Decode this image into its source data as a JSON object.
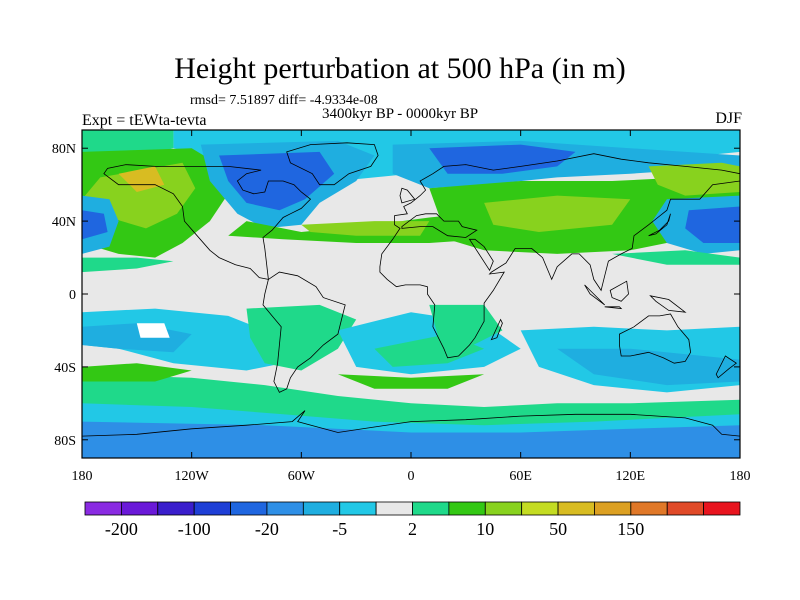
{
  "header": {
    "title": "Height perturbation at 500 hPa (in m)",
    "stats": "rmsd= 7.51897 diff= -4.9334e-08",
    "period": "3400kyr BP - 0000kyr BP",
    "experiment": "Expt = tEWta-tevta",
    "season": "DJF"
  },
  "axes": {
    "lat_ticks": [
      {
        "value": 80,
        "label": "80N"
      },
      {
        "value": 40,
        "label": "40N"
      },
      {
        "value": 0,
        "label": "0"
      },
      {
        "value": -40,
        "label": "40S"
      },
      {
        "value": -80,
        "label": "80S"
      }
    ],
    "lon_ticks": [
      {
        "value": -180,
        "label": "180"
      },
      {
        "value": -120,
        "label": "120W"
      },
      {
        "value": -60,
        "label": "60W"
      },
      {
        "value": 0,
        "label": "0"
      },
      {
        "value": 60,
        "label": "60E"
      },
      {
        "value": 120,
        "label": "120E"
      },
      {
        "value": 180,
        "label": "180"
      }
    ],
    "lon_range": [
      -180,
      180
    ],
    "lat_range": [
      -90,
      90
    ]
  },
  "colorbar": {
    "colors": [
      "#8a2be2",
      "#6a19d8",
      "#3a1ecc",
      "#1e3fd6",
      "#1f66e0",
      "#2e8fe6",
      "#1faee0",
      "#22c8e6",
      "#e8e8e8",
      "#1fd98a",
      "#33c814",
      "#88d21e",
      "#c4dc22",
      "#d8bc22",
      "#dca022",
      "#e07828",
      "#e04a28",
      "#e8141e"
    ],
    "labels": [
      {
        "after_box": 1,
        "text": "-200"
      },
      {
        "after_box": 3,
        "text": "-100"
      },
      {
        "after_box": 5,
        "text": "-20"
      },
      {
        "after_box": 7,
        "text": "-5"
      },
      {
        "after_box": 9,
        "text": "2"
      },
      {
        "after_box": 11,
        "text": "10"
      },
      {
        "after_box": 13,
        "text": "50"
      },
      {
        "after_box": 15,
        "text": "150"
      }
    ]
  },
  "field": {
    "background": "#e8e8e8",
    "colors": {
      "lightblue": "#1faee0",
      "cyan": "#22c8e6",
      "blue": "#1f66e0",
      "midblue": "#2e8fe6",
      "green": "#33c814",
      "teal": "#1fd98a",
      "yellowgreen": "#88d21e",
      "yellow": "#c4dc22",
      "orange": "#d8bc22",
      "white": "#ffffff",
      "coast": "#000000",
      "frame": "#000000"
    }
  }
}
